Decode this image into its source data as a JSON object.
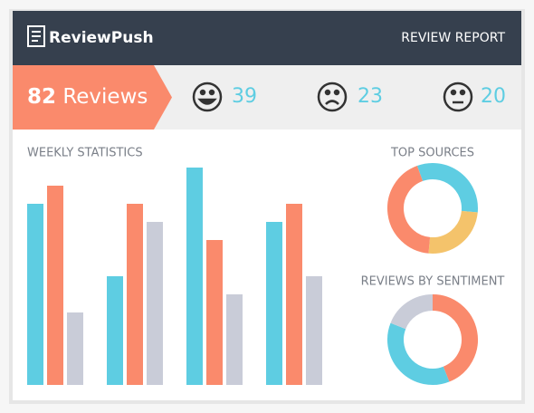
{
  "header": {
    "logo": "ReviewPush",
    "title": "REVIEW REPORT"
  },
  "summary": {
    "count": "82",
    "label": "Reviews",
    "positive": "39",
    "negative": "23",
    "neutral": "20"
  },
  "chart_data": [
    {
      "type": "bar",
      "title": "WEEKLY STATISTICS",
      "categories": [
        null,
        null,
        null,
        null
      ],
      "ylim": [
        0,
        24
      ],
      "series": [
        {
          "color": "#5ecde2",
          "values": [
            20,
            12,
            24,
            18
          ]
        },
        {
          "color": "#fa8a6c",
          "values": [
            22,
            20,
            16,
            20
          ]
        },
        {
          "color": "#c9ccd8",
          "values": [
            8,
            18,
            10,
            12
          ]
        }
      ]
    },
    {
      "type": "donut",
      "title": "TOP SOURCES",
      "values": [
        32,
        25,
        43
      ],
      "colors": [
        "#5ecde2",
        "#f4c36b",
        "#fa8a6c"
      ]
    },
    {
      "type": "donut",
      "title": "REVIEWS BY SENTIMENT",
      "values": [
        44,
        37,
        19
      ],
      "colors": [
        "#fa8a6c",
        "#5ecde2",
        "#c9ccd8"
      ]
    }
  ]
}
